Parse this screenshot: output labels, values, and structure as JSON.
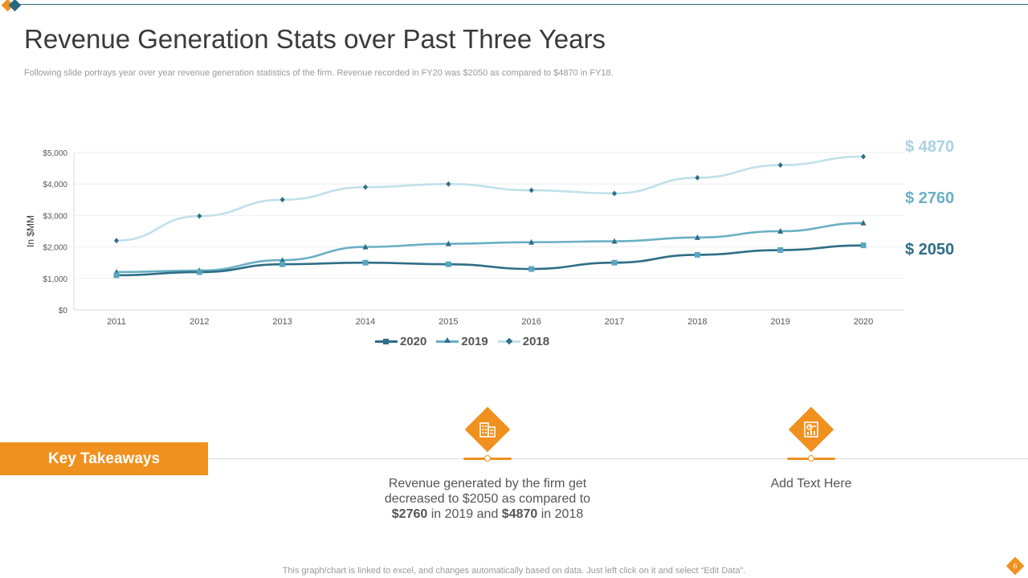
{
  "slide": {
    "title": "Revenue Generation Stats over Past Three Years",
    "subtitle": "Following slide portrays year over year revenue generation statistics of the firm. Revenue recorded in FY20 was $2050 as compared to $4870 in FY18.",
    "footer": "This graph/chart is linked to excel, and changes automatically based on data. Just left click on it and select “Edit Data”.",
    "page_number": "6"
  },
  "chart_data": {
    "type": "line",
    "title": "",
    "xlabel": "",
    "ylabel": "In $MM",
    "categories": [
      "2011",
      "2012",
      "2013",
      "2014",
      "2015",
      "2016",
      "2017",
      "2018",
      "2019",
      "2020"
    ],
    "y_ticks": [
      "$0",
      "$1,000",
      "$2,000",
      "$3,000",
      "$4,000",
      "$5,000"
    ],
    "ylim": [
      0,
      5000
    ],
    "grid": true,
    "legend_position": "bottom",
    "series": [
      {
        "name": "2020",
        "marker": "square",
        "color": "#2e6e86",
        "values": [
          1100,
          1200,
          1450,
          1500,
          1450,
          1300,
          1500,
          1750,
          1900,
          2050
        ]
      },
      {
        "name": "2019",
        "marker": "triangle",
        "color": "#6aafc4",
        "values": [
          1200,
          1250,
          1580,
          2000,
          2100,
          2150,
          2180,
          2300,
          2500,
          2760
        ]
      },
      {
        "name": "2018",
        "marker": "diamond",
        "color": "#bfe0ea",
        "values": [
          2200,
          2980,
          3500,
          3900,
          4000,
          3800,
          3700,
          4200,
          4600,
          4870
        ]
      }
    ],
    "end_labels": [
      {
        "text": "$ 4870",
        "color": "#a8d2e0"
      },
      {
        "text": "$ 2760",
        "color": "#6aafc4"
      },
      {
        "text": "$ 2050",
        "color": "#2e6e86"
      }
    ]
  },
  "takeaways": {
    "heading": "Key Takeaways",
    "items": [
      {
        "icon": "building-icon",
        "text_before": "Revenue  generated by the firm get decreased to $2050 as compared to ",
        "bold1": "$2760",
        "text_mid": " in 2019 and ",
        "bold2": "$4870",
        "text_after": " in 2018"
      },
      {
        "icon": "chart-clipboard-icon",
        "text": "Add Text Here"
      }
    ]
  }
}
